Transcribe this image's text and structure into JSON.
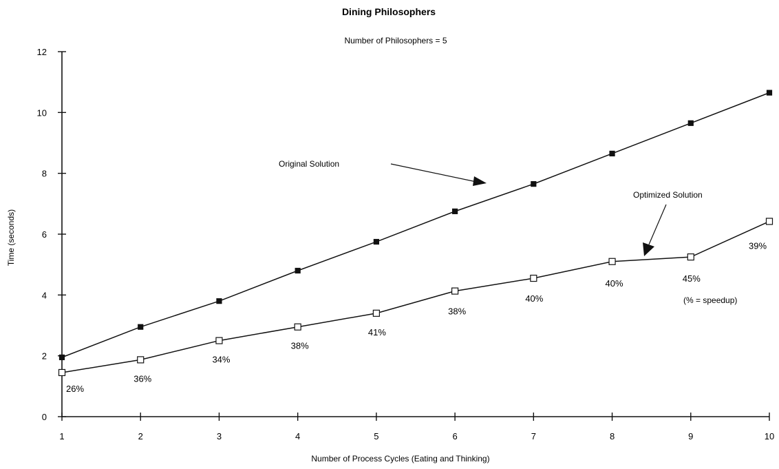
{
  "chart_data": {
    "type": "line",
    "title": "Dining Philosophers",
    "subtitle": "Number of Philosophers = 5",
    "xlabel": "Number of Process Cycles (Eating and Thinking)",
    "ylabel": "Time (seconds)",
    "x": [
      1,
      2,
      3,
      4,
      5,
      6,
      7,
      8,
      9,
      10
    ],
    "xlim": [
      1,
      10
    ],
    "ylim": [
      0,
      12
    ],
    "yticks": [
      0,
      2,
      4,
      6,
      8,
      10,
      12
    ],
    "grid": false,
    "series": [
      {
        "name": "Original Solution",
        "marker": "filled-square",
        "color": "#111111",
        "values": [
          1.95,
          2.95,
          3.8,
          4.8,
          5.75,
          6.75,
          7.65,
          8.65,
          9.65,
          10.65
        ]
      },
      {
        "name": "Optimized Solution",
        "marker": "open-square",
        "color": "#111111",
        "values": [
          1.45,
          1.87,
          2.5,
          2.95,
          3.4,
          4.13,
          4.55,
          5.1,
          5.25,
          6.42
        ]
      }
    ],
    "speedup_labels": [
      "26%",
      "36%",
      "34%",
      "38%",
      "41%",
      "38%",
      "40%",
      "40%",
      "45%",
      "39%"
    ],
    "annotations": [
      "(% = speedup)"
    ]
  }
}
